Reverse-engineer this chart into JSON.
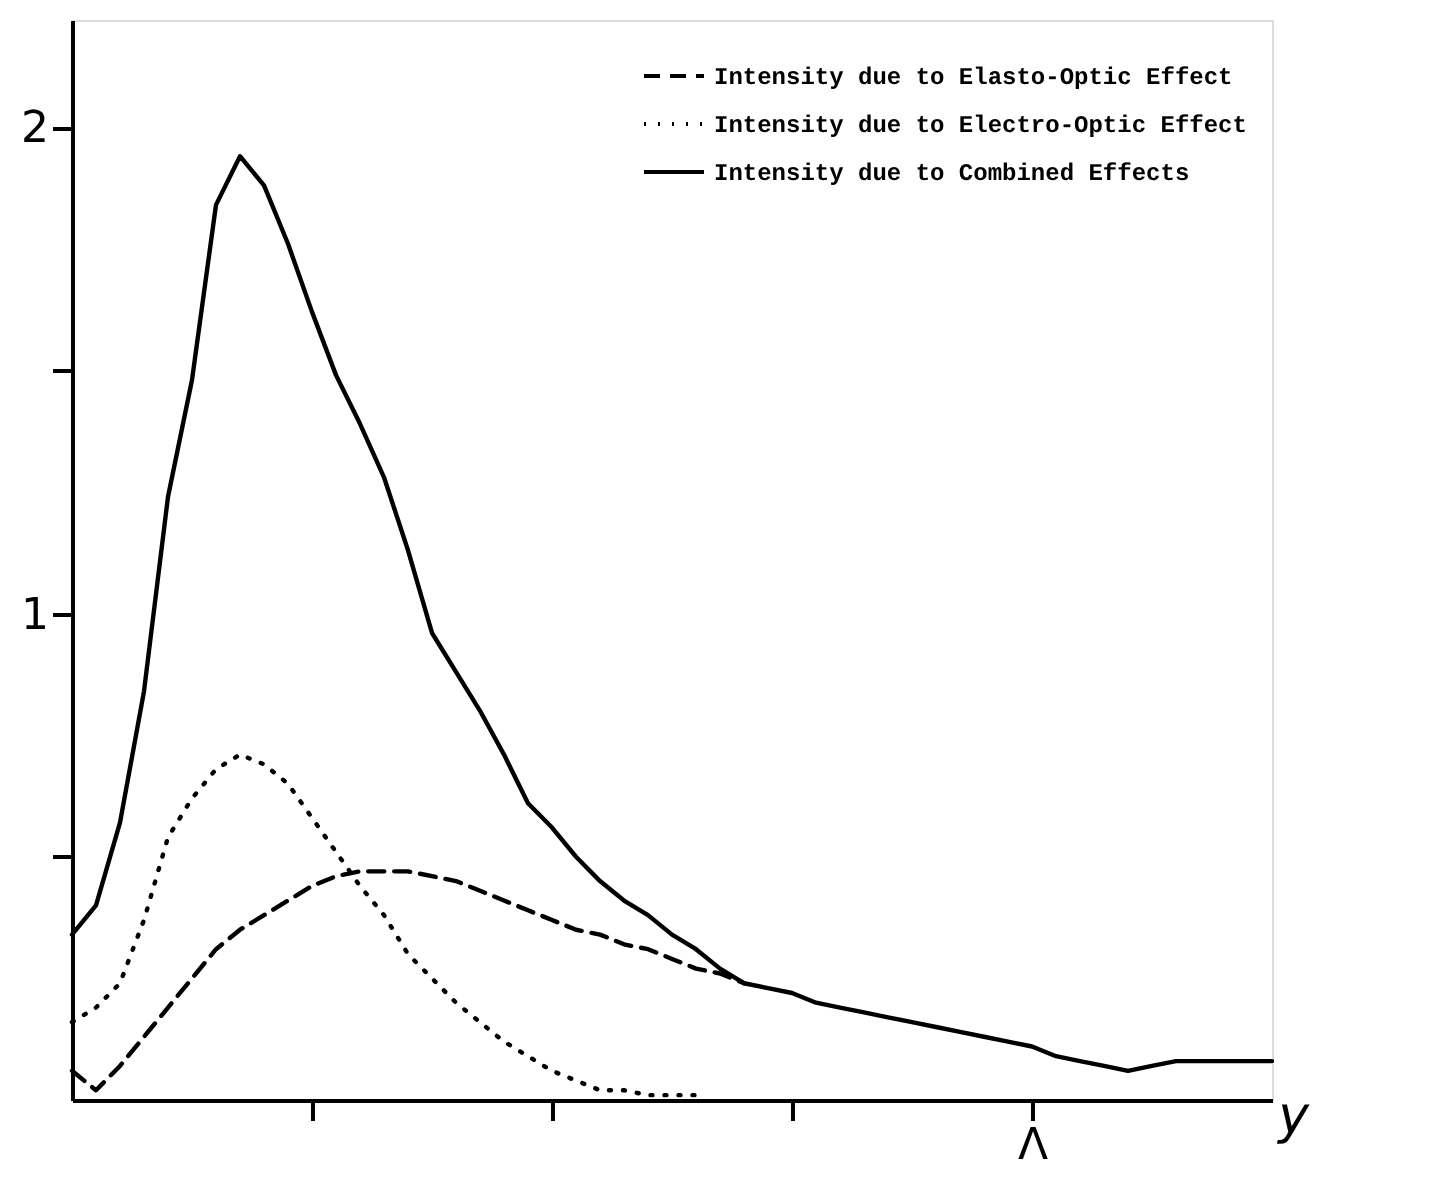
{
  "chart_data": {
    "type": "line",
    "xlabel": "y",
    "ylim": [
      0,
      2.22
    ],
    "categories": [
      null,
      null,
      null,
      null,
      null,
      null,
      null,
      null,
      null,
      null,
      null,
      null,
      null,
      null,
      null,
      null,
      null,
      null,
      null,
      null,
      null,
      null,
      null,
      null,
      null,
      null,
      null,
      null,
      null,
      null,
      null,
      null,
      null,
      null,
      null,
      null,
      null,
      null,
      null,
      null,
      "Λ",
      null,
      null,
      null,
      null,
      null,
      null,
      null,
      null,
      null,
      null
    ],
    "yticks": [
      {
        "value": 0.5,
        "label": null
      },
      1,
      {
        "value": 1.5,
        "label": null
      },
      2
    ],
    "grid": false,
    "legend": "top right",
    "marker": "none",
    "series": [
      {
        "name": "Intensity due to Elasto-Optic Effect",
        "color": "#000000",
        "line_style": "dashed",
        "values": [
          0.06,
          0.02,
          0.07,
          0.13,
          0.19,
          0.25,
          0.31,
          0.35,
          0.38,
          0.41,
          0.44,
          0.46,
          0.47,
          0.47,
          0.47,
          0.46,
          0.45,
          0.43,
          0.41,
          0.39,
          0.37,
          0.35,
          0.34,
          0.32,
          0.31,
          0.29,
          0.27,
          0.26,
          0.24,
          null,
          null,
          null,
          null,
          null,
          null,
          null,
          null,
          null,
          null,
          null,
          null,
          null,
          null,
          null,
          null,
          null,
          null,
          null,
          null,
          null,
          null
        ]
      },
      {
        "name": "Intensity due to Electro-Optic Effect",
        "color": "#000000",
        "line_style": "dotted",
        "values": [
          0.16,
          0.19,
          0.24,
          0.37,
          0.54,
          0.62,
          0.68,
          0.71,
          0.69,
          0.65,
          0.58,
          0.51,
          0.44,
          0.38,
          0.3,
          0.25,
          0.2,
          0.16,
          0.12,
          0.09,
          0.06,
          0.04,
          0.02,
          0.02,
          0.01,
          0.01,
          0.01,
          null,
          null,
          null,
          null,
          null,
          null,
          null,
          null,
          null,
          null,
          null,
          null,
          null,
          null,
          null,
          null,
          null,
          null,
          null,
          null,
          null,
          null,
          null,
          null
        ]
      },
      {
        "name": "Intensity due to Combined Effects",
        "color": "#000000",
        "line_style": "solid",
        "values": [
          0.34,
          0.4,
          0.57,
          0.84,
          1.24,
          1.48,
          1.84,
          1.94,
          1.88,
          1.76,
          1.62,
          1.49,
          1.39,
          1.28,
          1.13,
          0.96,
          0.88,
          0.8,
          0.71,
          0.61,
          0.56,
          0.5,
          0.45,
          0.41,
          0.38,
          0.34,
          0.31,
          0.27,
          0.24,
          0.23,
          0.22,
          0.2,
          0.19,
          0.18,
          0.17,
          0.16,
          0.15,
          0.14,
          0.13,
          0.12,
          0.11,
          0.09,
          0.08,
          0.07,
          0.06,
          0.07,
          0.08,
          0.08,
          0.08,
          0.08,
          0.08
        ]
      }
    ]
  }
}
